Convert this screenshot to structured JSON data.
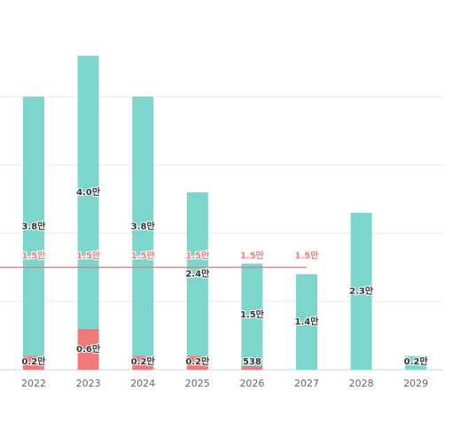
{
  "chart_data": {
    "type": "stacked_bar",
    "categories": [
      "2022",
      "2023",
      "2024",
      "2025",
      "2026",
      "2027",
      "2028",
      "2029"
    ],
    "series": [
      {
        "color": "#f47a7a",
        "values": [
          2000,
          6000,
          2000,
          2000,
          538,
          0,
          null,
          null
        ],
        "value_labels": [
          "0.2만",
          "0.6만",
          "0.2만",
          "0.2만",
          "538",
          null,
          null,
          null
        ]
      },
      {
        "color": "#7dd6cc",
        "values": [
          38000,
          40000,
          38000,
          24000,
          15000,
          14000,
          23000,
          2000
        ],
        "value_labels": [
          "3.8만",
          "4.0만",
          "3.8만",
          "2.4만",
          "1.5만",
          "1.4만",
          "2.3만",
          "0.2만"
        ]
      }
    ],
    "reference_line": {
      "value": 15000,
      "label": "1.5만",
      "color": "#f47a7a"
    },
    "ylim": [
      0,
      50000
    ],
    "yticks": [
      0,
      10000,
      20000,
      30000,
      40000
    ],
    "grid": true
  }
}
